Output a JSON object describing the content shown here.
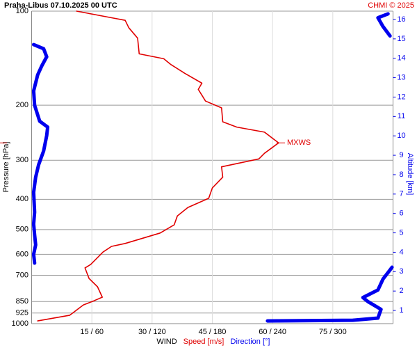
{
  "chart_data": {
    "type": "sounding",
    "title": "Praha-Libus   07.10.2025 00 UTC",
    "credit": "CHMI © 2025",
    "ylabel": "Pressure [hPa]",
    "y2label": "Altitude [km]",
    "xlabel": "WIND",
    "ylim": [
      1000,
      100
    ],
    "log_y": true,
    "yticks": [
      100,
      200,
      300,
      400,
      500,
      600,
      700,
      850,
      925,
      1000
    ],
    "xlim": [
      0,
      90
    ],
    "x2lim": [
      0,
      360
    ],
    "xticks": [
      {
        "value": 15,
        "label": "15 / 60"
      },
      {
        "value": 30,
        "label": "30 / 120"
      },
      {
        "value": 45,
        "label": "45 / 180"
      },
      {
        "value": 60,
        "label": "60 / 240"
      },
      {
        "value": 75,
        "label": "75 / 300"
      }
    ],
    "y2lim": [
      0.32,
      16.43
    ],
    "y2ticks": [
      1,
      2,
      3,
      4,
      5,
      6,
      7,
      8,
      9,
      10,
      11,
      12,
      13,
      14,
      15,
      16
    ],
    "grid": true,
    "series": [
      {
        "name": "Speed [m/s]",
        "color": "#e00000",
        "axis": "x",
        "pressure": [
          980,
          940,
          871,
          845,
          823,
          762,
          717,
          663,
          647,
          590,
          566,
          554,
          513,
          483,
          452,
          425,
          397,
          368,
          340,
          315,
          297,
          285,
          264,
          244,
          235,
          226,
          204,
          194,
          178,
          170,
          158,
          148,
          142,
          137,
          122,
          113,
          107,
          105,
          100
        ],
        "values": [
          1.5,
          9.5,
          12.9,
          15.5,
          17.6,
          16.4,
          14.3,
          13.3,
          14.7,
          17.8,
          19.9,
          23.3,
          32.0,
          35.5,
          36.3,
          38.9,
          44.1,
          45.0,
          47.6,
          47.3,
          56.6,
          58.0,
          61.5,
          58.0,
          51.1,
          47.6,
          47.3,
          43.3,
          41.5,
          42.4,
          38.1,
          34.6,
          32.9,
          26.8,
          26.4,
          24.2,
          23.3,
          19.9,
          11.2
        ]
      },
      {
        "name": "Direction [°]",
        "color": "#0000ee",
        "axis": "x2",
        "pressure": [
          980,
          975,
          960,
          900,
          850,
          825,
          780,
          720,
          680,
          660,
          650,
          640,
          600,
          560,
          520,
          480,
          440,
          380,
          340,
          310,
          280,
          250,
          235,
          225,
          200,
          180,
          160,
          150,
          140,
          132,
          128,
          125,
          120,
          112,
          105,
          102,
          101,
          100
        ],
        "values": [
          235,
          320,
          345,
          348,
          335,
          330,
          345,
          350,
          356,
          359,
          null,
          3,
          2,
          4,
          3,
          2,
          3,
          2,
          4,
          7,
          12,
          15,
          16,
          8,
          3,
          2,
          6,
          10,
          15,
          12,
          2,
          null,
          357,
          350,
          345,
          355,
          null,
          5
        ]
      }
    ],
    "annotation": {
      "text": "MXWS",
      "pressure": 264
    }
  }
}
